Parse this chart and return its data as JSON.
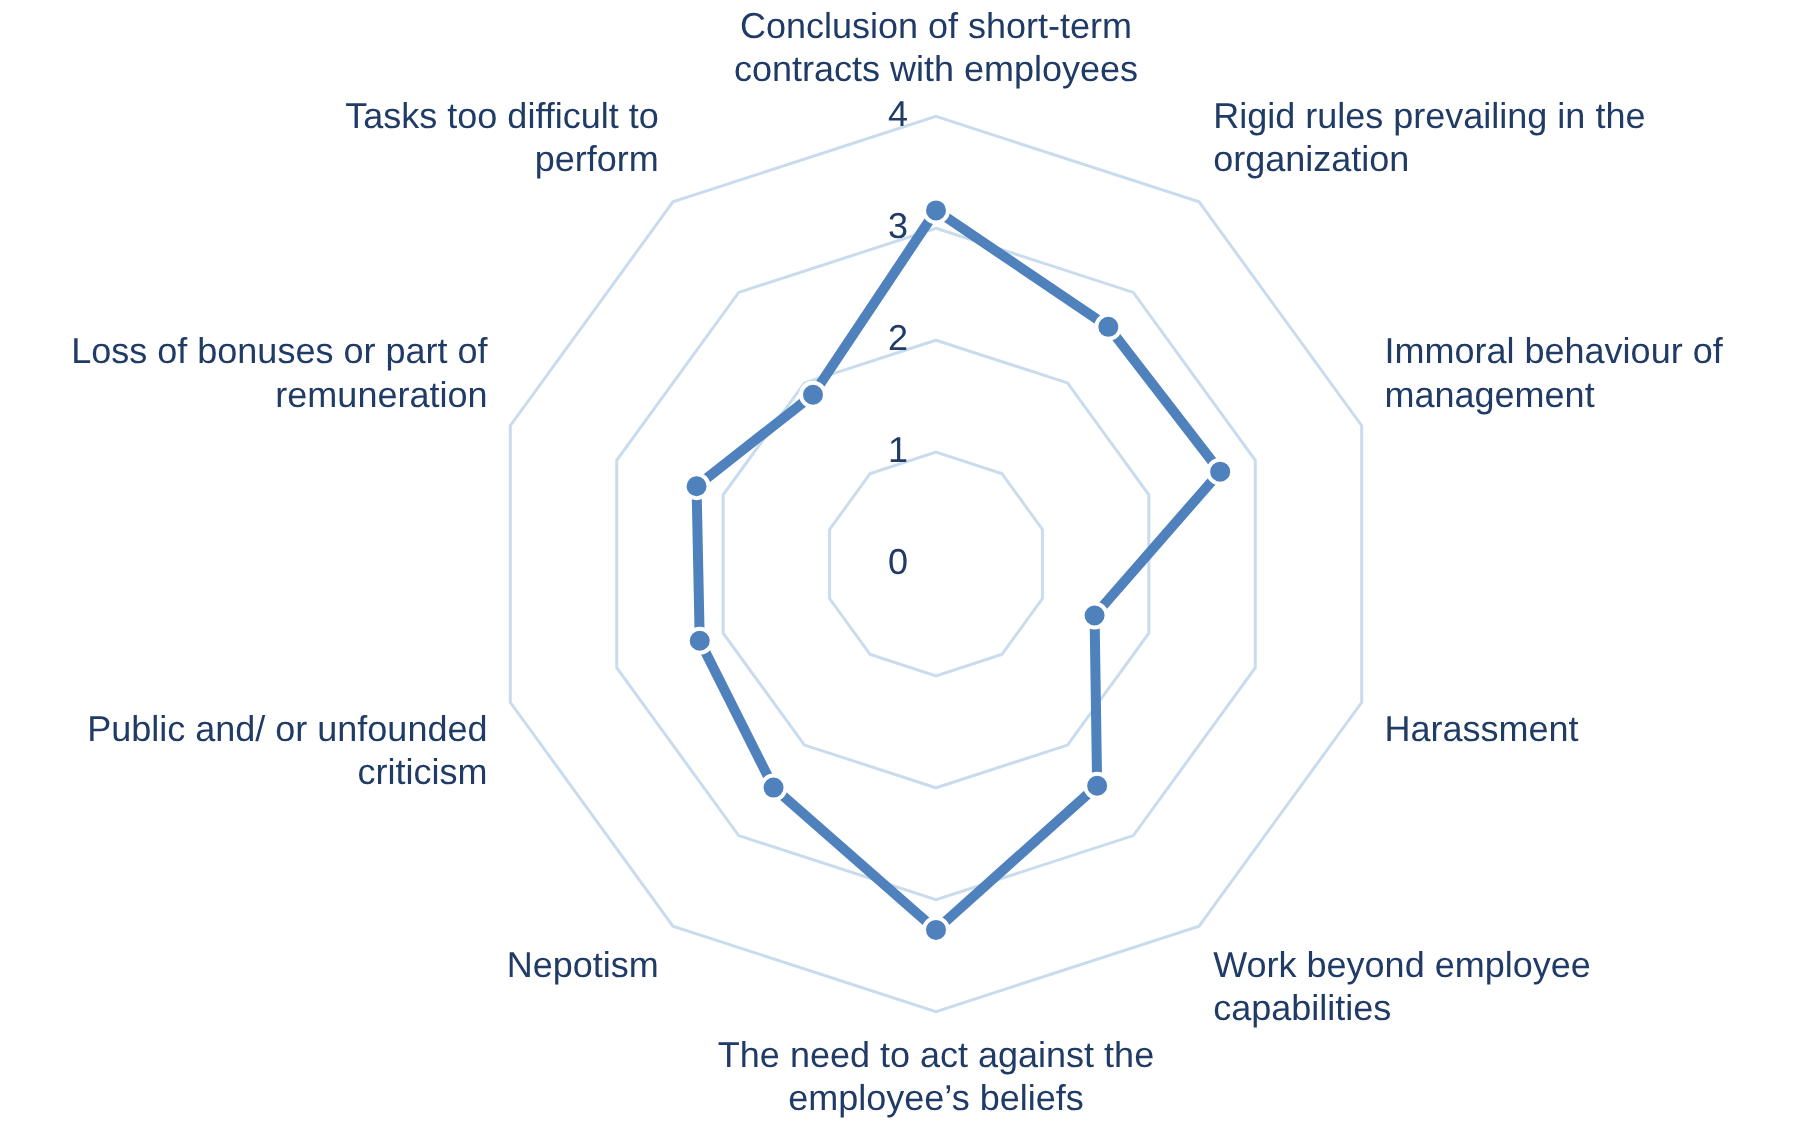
{
  "chart_data": {
    "type": "radar",
    "categories": [
      "Conclusion of short-term contracts with employees",
      "Rigid rules prevailing in the organization",
      "Immoral behaviour of management",
      "Harassment",
      "Work beyond employee capabilities",
      "The need to act against the employee’s beliefs",
      "Nepotism",
      "Public and/ or unfounded criticism",
      "Loss of bonuses or part of remuneration",
      "Tasks too difficult to perform"
    ],
    "series": [
      {
        "color": "#4f81bd",
        "values": [
          3.16,
          2.62,
          2.67,
          1.49,
          2.45,
          3.27,
          2.47,
          2.22,
          2.25,
          1.87
        ]
      }
    ],
    "ylim": [
      0,
      4
    ],
    "yticks": [
      0,
      1,
      2,
      3,
      4
    ],
    "grid": true,
    "legend": false,
    "marker": "circle"
  }
}
